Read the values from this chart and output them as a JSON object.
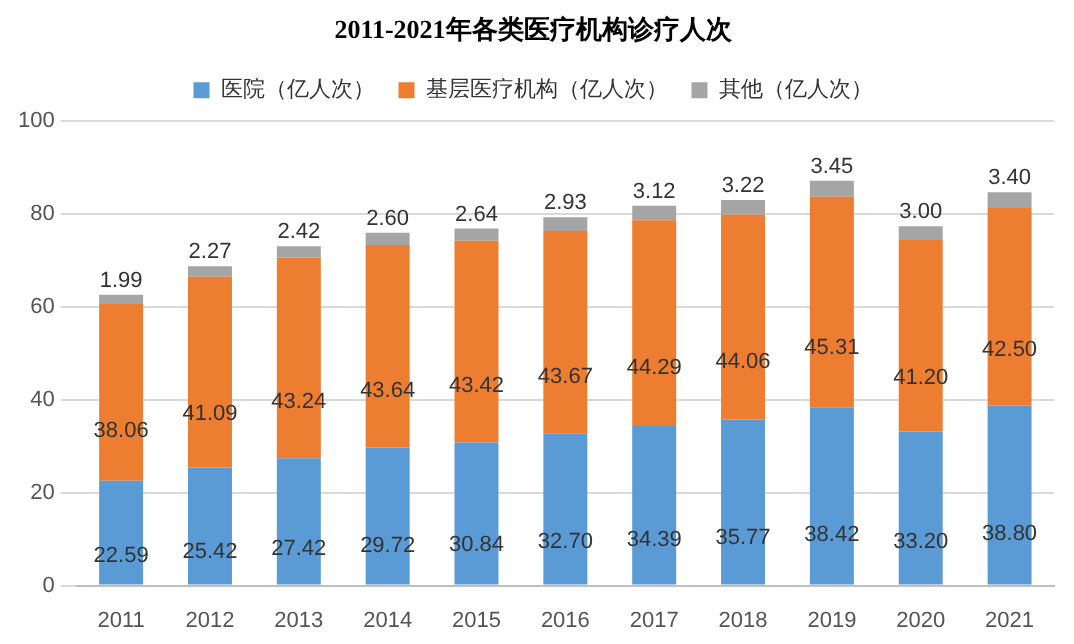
{
  "chart_data": {
    "type": "bar",
    "title": "2011-2021年各类医疗机构诊疗人次",
    "categories": [
      "2011",
      "2012",
      "2013",
      "2014",
      "2015",
      "2016",
      "2017",
      "2018",
      "2019",
      "2020",
      "2021"
    ],
    "stacked": true,
    "ylim": [
      0,
      100
    ],
    "yticks": [
      0,
      20,
      40,
      60,
      80,
      100
    ],
    "grid": "y",
    "legend": "top",
    "series": [
      {
        "name": "医院（亿人次）",
        "color": "#5b9bd5",
        "values": [
          22.59,
          25.42,
          27.42,
          29.72,
          30.84,
          32.7,
          34.39,
          35.77,
          38.42,
          33.2,
          38.8
        ],
        "value_labels": [
          "22.59",
          "25.42",
          "27.42",
          "29.72",
          "30.84",
          "32.70",
          "34.39",
          "35.77",
          "38.42",
          "33.20",
          "38.80"
        ]
      },
      {
        "name": "基层医疗机构（亿人次）",
        "color": "#ed7d31",
        "values": [
          38.06,
          41.09,
          43.24,
          43.64,
          43.42,
          43.67,
          44.29,
          44.06,
          45.31,
          41.2,
          42.5
        ],
        "value_labels": [
          "38.06",
          "41.09",
          "43.24",
          "43.64",
          "43.42",
          "43.67",
          "44.29",
          "44.06",
          "45.31",
          "41.20",
          "42.50"
        ]
      },
      {
        "name": "其他（亿人次）",
        "color": "#a5a5a5",
        "values": [
          1.99,
          2.27,
          2.42,
          2.6,
          2.64,
          2.93,
          3.12,
          3.22,
          3.45,
          3.0,
          3.4
        ],
        "value_labels": [
          "1.99",
          "2.27",
          "2.42",
          "2.60",
          "2.64",
          "2.93",
          "3.12",
          "3.22",
          "3.45",
          "3.00",
          "3.40"
        ]
      }
    ]
  }
}
